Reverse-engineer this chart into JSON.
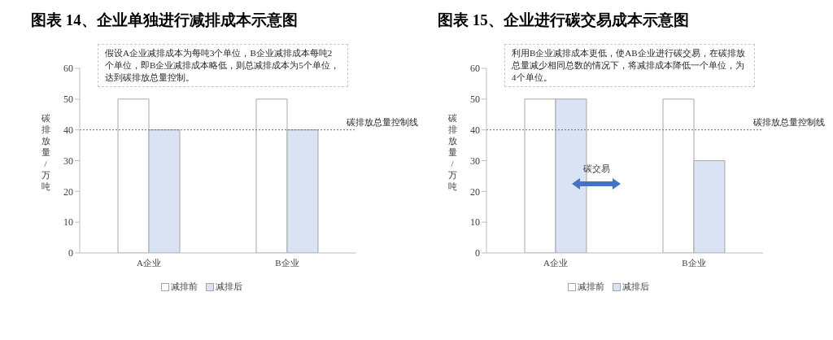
{
  "chart_data": [
    {
      "type": "bar",
      "title": "图表 14、企业单独进行减排成本示意图",
      "ylabel": "碳排放量/万吨",
      "categories": [
        "A企业",
        "B企业"
      ],
      "series": [
        {
          "name": "减排前",
          "color": "#ffffff",
          "values": [
            50,
            50
          ]
        },
        {
          "name": "减排后",
          "color": "#dae3f3",
          "values": [
            40,
            40
          ]
        }
      ],
      "ylim": [
        0,
        60
      ],
      "yticks": [
        0,
        10,
        20,
        30,
        40,
        50,
        60
      ],
      "legend": "bottom",
      "ref_lines": [
        {
          "axis": "y",
          "value": 40,
          "label": "碳排放总量控制线",
          "color": "#4472c4",
          "line_style": "dotted"
        }
      ],
      "annotations": [
        "假设A企业减排成本为每吨3个单位，B企业减排成本每吨2个单位，即B企业减排成本略低，则总减排成本为5个单位，达到碳排放总量控制。"
      ]
    },
    {
      "type": "bar",
      "title": "图表 15、企业进行碳交易成本示意图",
      "ylabel": "碳排放量/万吨",
      "categories": [
        "A企业",
        "B企业"
      ],
      "series": [
        {
          "name": "减排前",
          "color": "#ffffff",
          "values": [
            50,
            50
          ]
        },
        {
          "name": "减排后",
          "color": "#dae3f3",
          "values": [
            50,
            30
          ]
        }
      ],
      "ylim": [
        0,
        60
      ],
      "yticks": [
        0,
        10,
        20,
        30,
        40,
        50,
        60
      ],
      "legend": "bottom",
      "ref_lines": [
        {
          "axis": "y",
          "value": 40,
          "label": "碳排放总量控制线",
          "color": "#4472c4",
          "line_style": "dotted"
        }
      ],
      "annotations": [
        "利用B企业减排成本更低，使AB企业进行碳交易，在碳排放总量减少相同总数的情况下，将减排成本降低一个单位，为4个单位。",
        "碳交易"
      ]
    }
  ]
}
